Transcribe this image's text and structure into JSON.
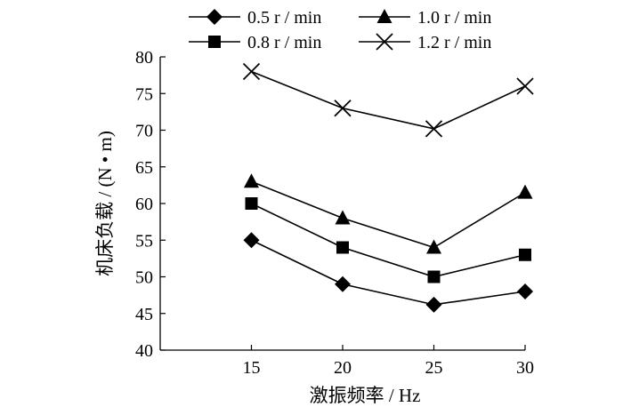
{
  "chart_data": {
    "type": "line",
    "title": "",
    "xlabel": "激振频率 / Hz",
    "ylabel": "机床负载 / (N • m)",
    "x": [
      15,
      20,
      25,
      30
    ],
    "xlim": [
      10,
      30
    ],
    "ylim": [
      40,
      80
    ],
    "y_ticks": [
      40,
      45,
      50,
      55,
      60,
      65,
      70,
      75,
      80
    ],
    "x_ticks": [
      15,
      20,
      25,
      30
    ],
    "grid": false,
    "legend_position": "top",
    "series": [
      {
        "name": "0.5 r / min",
        "marker": "diamond",
        "values": [
          55,
          49,
          46.2,
          48
        ]
      },
      {
        "name": "0.8 r / min",
        "marker": "square",
        "values": [
          60,
          54,
          50,
          53
        ]
      },
      {
        "name": "1.0 r / min",
        "marker": "triangle",
        "values": [
          63,
          58,
          54,
          61.5
        ]
      },
      {
        "name": "1.2 r / min",
        "marker": "cross",
        "values": [
          78,
          73,
          70.2,
          76
        ]
      }
    ],
    "colors": {
      "line": "#000000",
      "marker": "#000000"
    }
  }
}
